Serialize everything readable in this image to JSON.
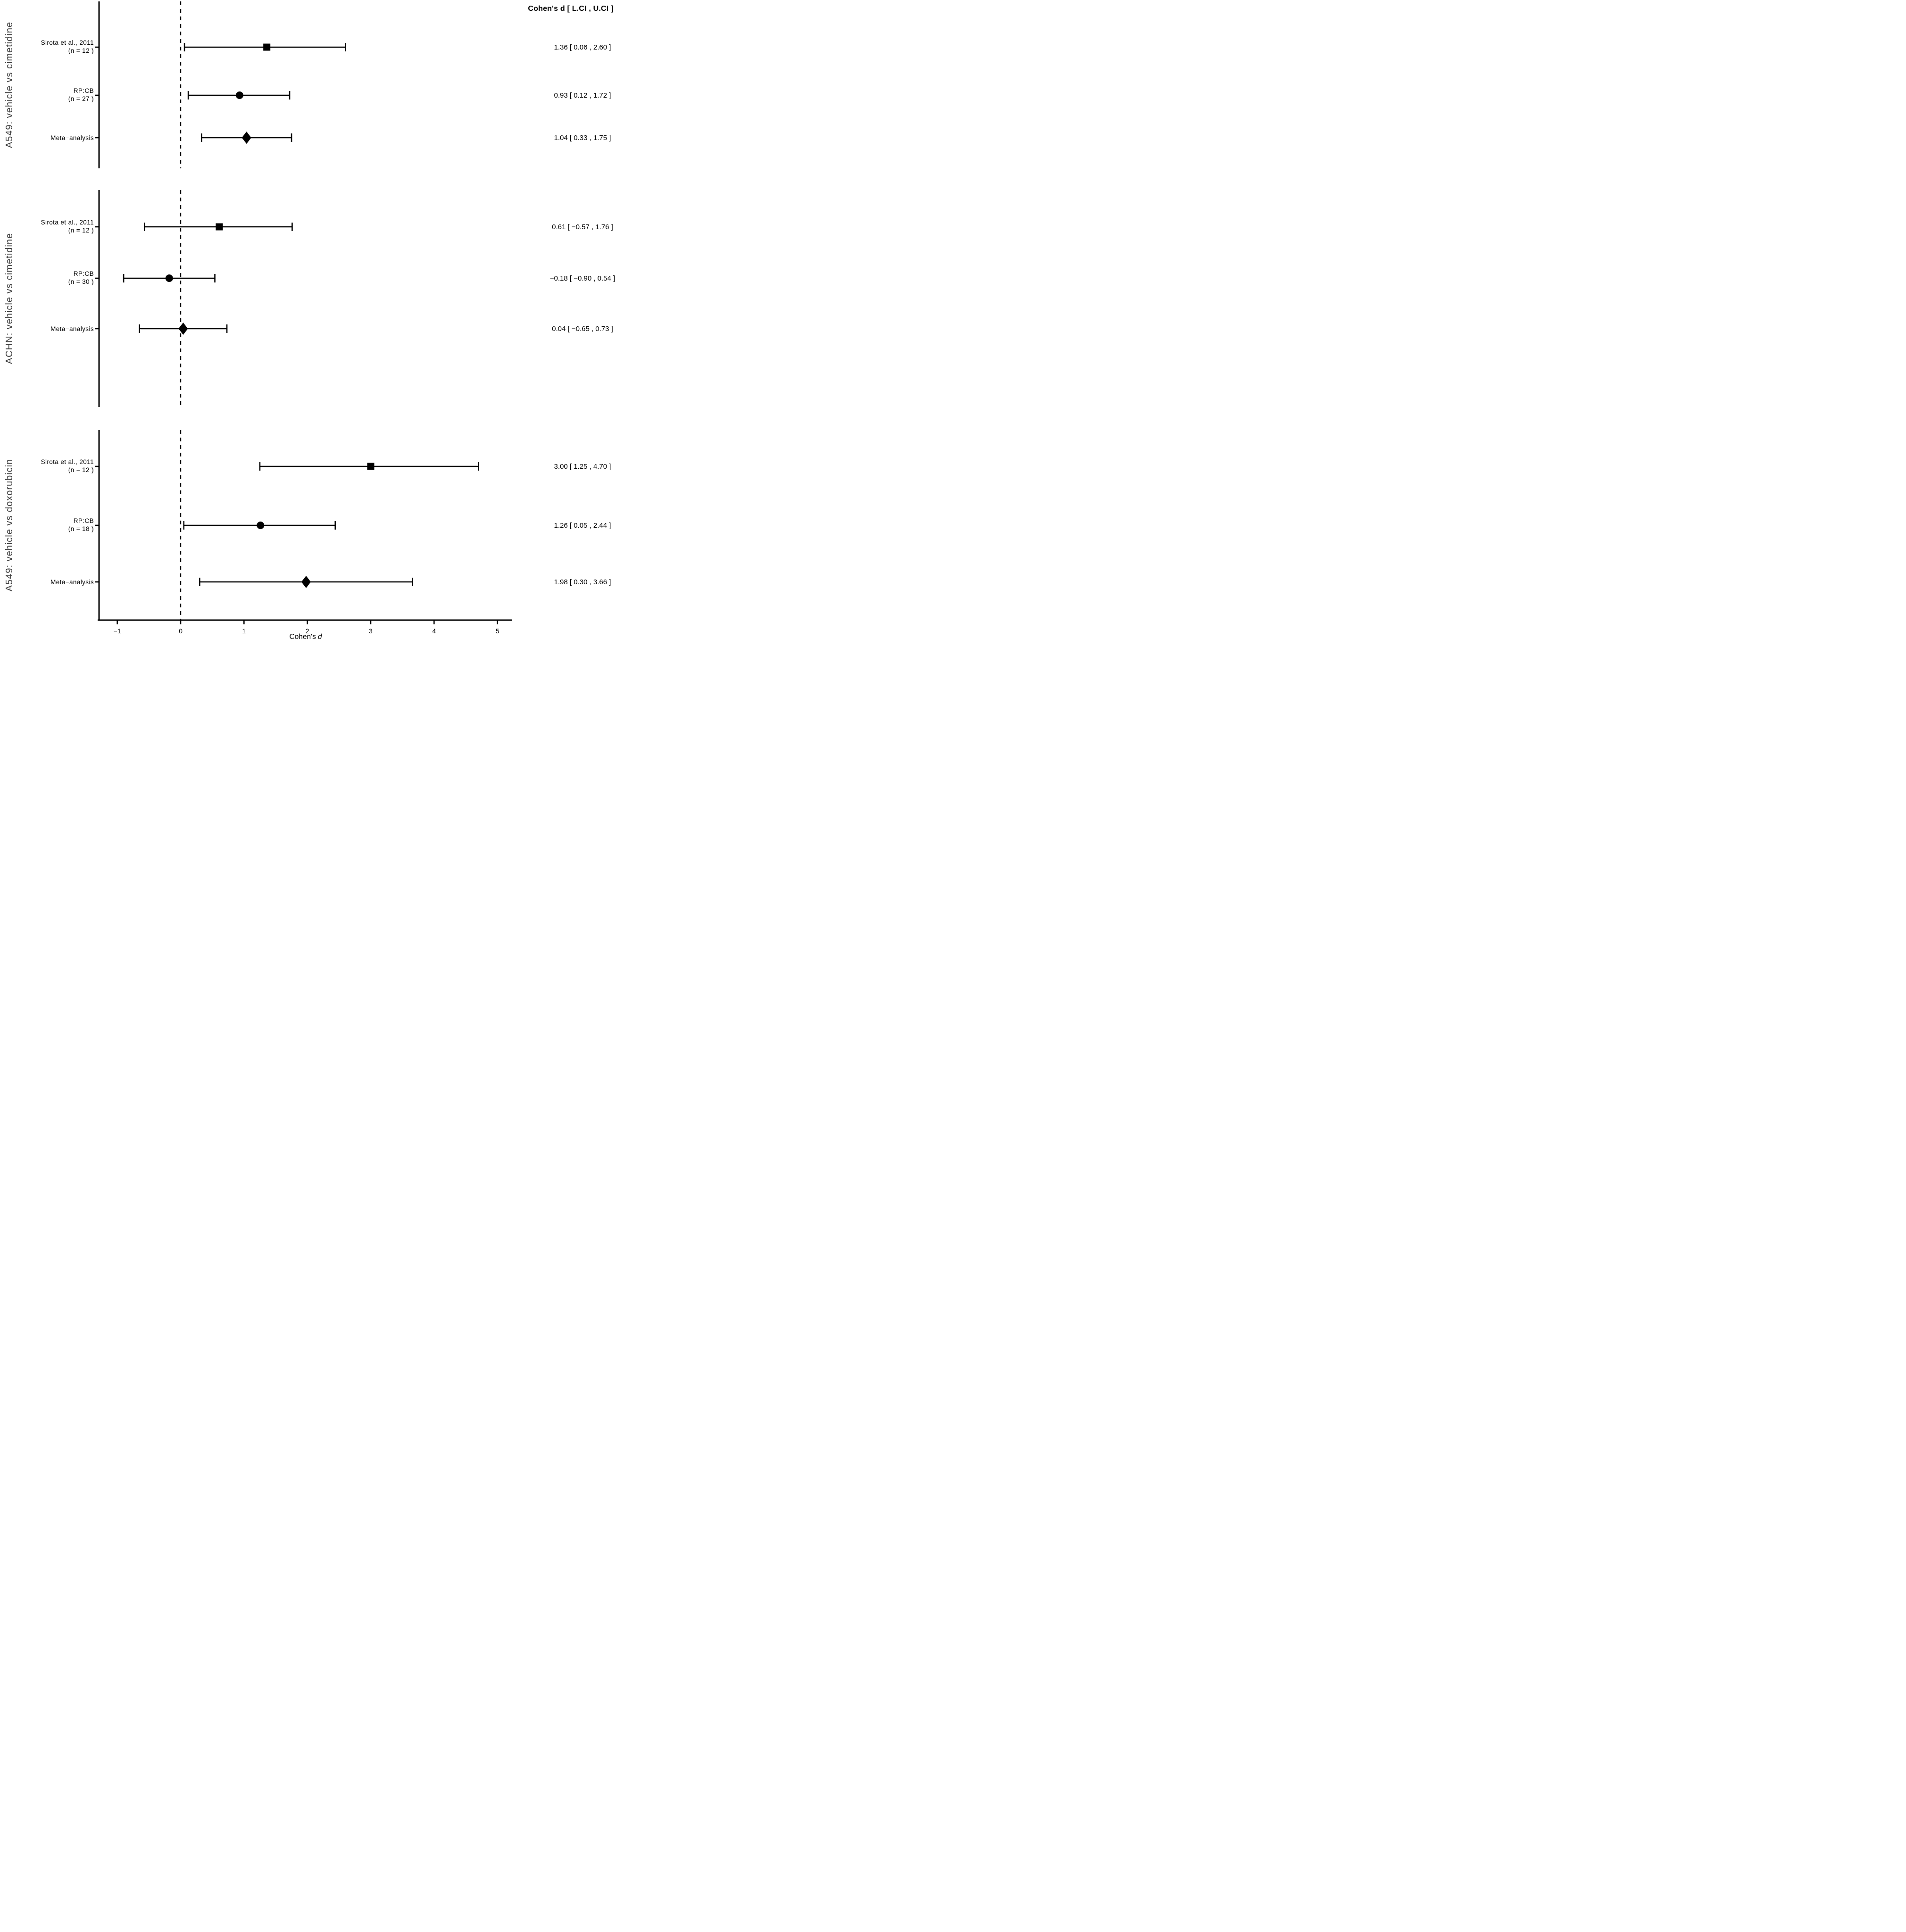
{
  "figure": {
    "value_column_header": "Cohen's d [ L.CI , U.CI ]",
    "x_axis_label_main": "Cohen's",
    "x_axis_label_variable": "d"
  },
  "chart_data": {
    "type": "forest",
    "xlabel": "Cohen's d",
    "value_header": "Cohen's d [ L.CI , U.CI ]",
    "x_ticks": [
      -1,
      0,
      1,
      2,
      3,
      4,
      5
    ],
    "x_tick_labels": [
      "−1",
      "0",
      "1",
      "2",
      "3",
      "4",
      "5"
    ],
    "xlim": [
      -1.29,
      5.24
    ],
    "reference_line_x": 0,
    "grid": false,
    "legend": "none",
    "panels": [
      {
        "title": "A549: vehicle vs cimetidine",
        "rows": [
          {
            "label": "Sirota et al., 2011",
            "sublabel": "(n = 12 )",
            "marker": "square",
            "d": 1.36,
            "lci": 0.06,
            "uci": 2.6,
            "value_text": "1.36 [ 0.06 , 2.60 ]"
          },
          {
            "label": "RP:CB",
            "sublabel": "(n = 27 )",
            "marker": "circle",
            "d": 0.93,
            "lci": 0.12,
            "uci": 1.72,
            "value_text": "0.93 [ 0.12 , 1.72 ]"
          },
          {
            "label": "Meta−analysis",
            "sublabel": "",
            "marker": "diamond",
            "d": 1.04,
            "lci": 0.33,
            "uci": 1.75,
            "value_text": "1.04 [ 0.33 , 1.75 ]"
          }
        ]
      },
      {
        "title": "ACHN: vehicle vs cimetidine",
        "rows": [
          {
            "label": "Sirota et al., 2011",
            "sublabel": "(n = 12 )",
            "marker": "square",
            "d": 0.61,
            "lci": -0.57,
            "uci": 1.76,
            "value_text": "0.61 [ −0.57 , 1.76 ]"
          },
          {
            "label": "RP:CB",
            "sublabel": "(n = 30 )",
            "marker": "circle",
            "d": -0.18,
            "lci": -0.9,
            "uci": 0.54,
            "value_text": "−0.18 [ −0.90 , 0.54 ]"
          },
          {
            "label": "Meta−analysis",
            "sublabel": "",
            "marker": "diamond",
            "d": 0.04,
            "lci": -0.65,
            "uci": 0.73,
            "value_text": "0.04 [ −0.65 , 0.73 ]"
          }
        ]
      },
      {
        "title": "A549: vehicle vs doxorubicin",
        "rows": [
          {
            "label": "Sirota et al., 2011",
            "sublabel": "(n = 12 )",
            "marker": "square",
            "d": 3.0,
            "lci": 1.25,
            "uci": 4.7,
            "value_text": "3.00 [ 1.25 , 4.70 ]"
          },
          {
            "label": "RP:CB",
            "sublabel": "(n = 18 )",
            "marker": "circle",
            "d": 1.26,
            "lci": 0.05,
            "uci": 2.44,
            "value_text": "1.26 [ 0.05 , 2.44 ]"
          },
          {
            "label": "Meta−analysis",
            "sublabel": "",
            "marker": "diamond",
            "d": 1.98,
            "lci": 0.3,
            "uci": 3.66,
            "value_text": "1.98 [ 0.30 , 3.66 ]"
          }
        ]
      }
    ]
  }
}
